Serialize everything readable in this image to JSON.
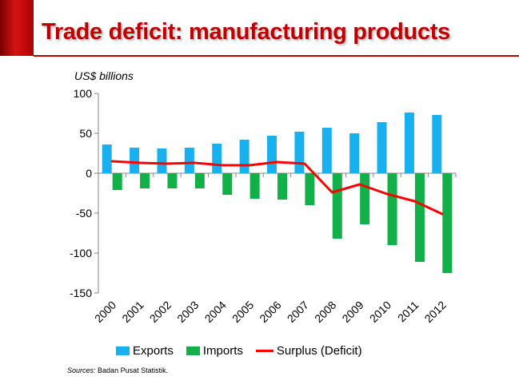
{
  "header": {
    "title": "Trade deficit: manufacturing products"
  },
  "colors": {
    "accent": "#c00000",
    "exports": "#19b0f0",
    "imports": "#11b049",
    "surplus": "#ff0000"
  },
  "chart_data": {
    "type": "bar",
    "title": "Trade deficit: manufacturing products",
    "unit_label": "US$ billions",
    "categories": [
      "2000",
      "2001",
      "2002",
      "2003",
      "2004",
      "2005",
      "2006",
      "2007",
      "2008",
      "2009",
      "2010",
      "2011",
      "2012"
    ],
    "series": [
      {
        "name": "Exports",
        "type": "bar",
        "values": [
          36,
          32,
          31,
          32,
          37,
          42,
          47,
          52,
          57,
          50,
          64,
          76,
          73
        ]
      },
      {
        "name": "Imports",
        "type": "bar",
        "values": [
          -21,
          -19,
          -19,
          -19,
          -27,
          -32,
          -33,
          -40,
          -82,
          -64,
          -90,
          -111,
          -125
        ]
      },
      {
        "name": "Surplus (Deficit)",
        "type": "line",
        "values": [
          15,
          13,
          12,
          13,
          10,
          10,
          14,
          12,
          -24,
          -14,
          -26,
          -35,
          -51
        ]
      }
    ],
    "yticks": [
      100,
      50,
      0,
      -50,
      -100,
      -150
    ],
    "ylim": [
      -150,
      100
    ],
    "legend_position": "bottom"
  },
  "footer": {
    "source_label": "Sources:",
    "source_text": "Badan Pusat Statistik."
  }
}
